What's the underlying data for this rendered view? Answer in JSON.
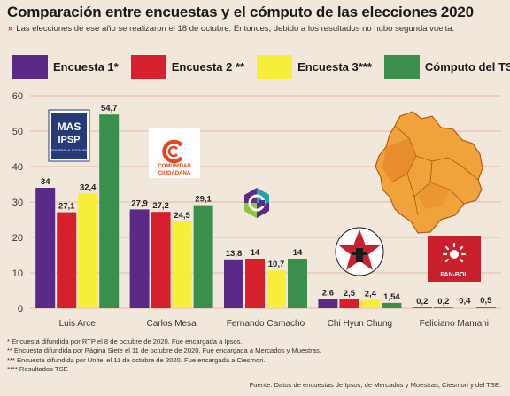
{
  "header": {
    "title": "Comparación entre encuestas y el cómputo de las elecciones 2020",
    "subtitle_marker": "»",
    "subtitle": "Las elecciones de ese año se realizaron el 18 de octubre. Entonces, debido a los resultados no hubo segunda vuelta."
  },
  "chart_data": {
    "type": "bar",
    "categories": [
      "Luis Arce",
      "Carlos Mesa",
      "Fernando Camacho",
      "Chi Hyun Chung",
      "Feliciano Mamani"
    ],
    "series": [
      {
        "name": "Encuesta 1*",
        "color": "#5b2a86",
        "values": [
          34,
          27.9,
          13.8,
          2.6,
          0.2
        ]
      },
      {
        "name": "Encuesta 2 **",
        "color": "#d6202e",
        "values": [
          27.1,
          27.2,
          14,
          2.5,
          0.2
        ]
      },
      {
        "name": "Encuesta 3***",
        "color": "#f7ee3b",
        "values": [
          32.4,
          24.5,
          10.7,
          2.4,
          0.4
        ]
      },
      {
        "name": "Cómputo del TSE",
        "color": "#3a8f4d",
        "values": [
          54.7,
          29.1,
          14,
          1.54,
          0.5
        ]
      }
    ],
    "value_labels": [
      [
        "34",
        "27,9",
        "13,8",
        "2,6",
        "0,2"
      ],
      [
        "27,1",
        "27,2",
        "14",
        "2,5",
        "0,2"
      ],
      [
        "32,4",
        "24,5",
        "10,7",
        "2,4",
        "0,4"
      ],
      [
        "54,7",
        "29,1",
        "14",
        "1,54",
        "0,5"
      ]
    ],
    "yticks": [
      "0",
      "10",
      "20",
      "30",
      "40",
      "50",
      "60"
    ],
    "ylim": [
      0,
      60
    ],
    "grid": true,
    "legend_position": "top"
  },
  "logos": {
    "mas": {
      "text": [
        "MAS",
        "IPSP"
      ],
      "small": "MOVIMIENTO AL SOCIALISMO",
      "bg": "#263a7a"
    },
    "cc": {
      "text": [
        "COMUNIDAD",
        "CIUDADANA"
      ],
      "accent": "#e2471e"
    },
    "pan": {
      "text": "PAN-BOL",
      "bg": "#c8202c"
    }
  },
  "footnotes": [
    "* Encuesta difundida por RTP el 8 de octubre de 2020. Fue encargada a Ipsos.",
    "** Encuesta difundida por Página Siete el 11 de octubre de 2020. Fue encargada a Mercados y Muestras.",
    "*** Encuesta difundida por Unitel el 11 de octubre de 2020. Fue encargada a Ciesmori.",
    "**** Resultados TSE"
  ],
  "source": "Fuente: Datos de encuestas de Ipsos, de Mercados y Muestras, Ciesmori y del TSE."
}
